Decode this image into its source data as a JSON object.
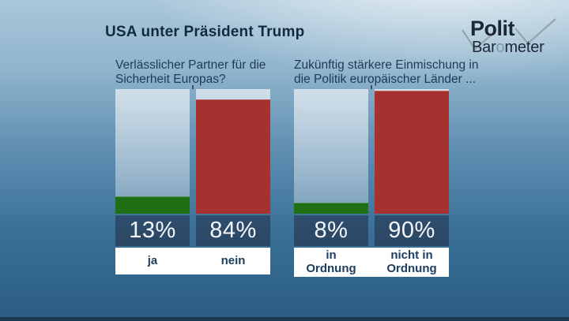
{
  "title": "USA unter Präsident Trump",
  "logo": {
    "line1": "Polit",
    "line2_pre": "Bar",
    "line2_o": "o",
    "line2_post": "meter"
  },
  "colors": {
    "positive_green": "#1f6f15",
    "negative_red": "#a63230",
    "value_block_navy": "#2d4b69",
    "label_navy": "#1c3e63"
  },
  "charts": [
    {
      "question": "Verlässlicher Partner für die Sicherheit Europas?",
      "bars": [
        {
          "label": "ja",
          "value": 13,
          "value_label": "13%",
          "color": "#1f6f15"
        },
        {
          "label": "nein",
          "value": 84,
          "value_label": "84%",
          "color": "#a63230"
        }
      ]
    },
    {
      "question": "Zukünftig stärkere Einmischung in die Politik europäischer Länder ...",
      "bars": [
        {
          "label": "in Ordnung",
          "value": 8,
          "value_label": "8%",
          "color": "#1f6f15"
        },
        {
          "label": "nicht in Ordnung",
          "value": 90,
          "value_label": "90%",
          "color": "#a63230"
        }
      ]
    }
  ],
  "chart_data": [
    {
      "type": "bar",
      "title": "Verlässlicher Partner für die Sicherheit Europas?",
      "categories": [
        "ja",
        "nein"
      ],
      "values": [
        13,
        84
      ],
      "unit": "%",
      "series_colors": [
        "#1f6f15",
        "#a63230"
      ],
      "ylim": [
        0,
        100
      ],
      "grid": false,
      "legend": "none",
      "data_labels": [
        "13%",
        "84%"
      ]
    },
    {
      "type": "bar",
      "title": "Zukünftig stärkere Einmischung in die Politik europäischer Länder ...",
      "categories": [
        "in Ordnung",
        "nicht in Ordnung"
      ],
      "values": [
        8,
        90
      ],
      "unit": "%",
      "series_colors": [
        "#1f6f15",
        "#a63230"
      ],
      "ylim": [
        0,
        100
      ],
      "grid": false,
      "legend": "none",
      "data_labels": [
        "8%",
        "90%"
      ]
    }
  ]
}
